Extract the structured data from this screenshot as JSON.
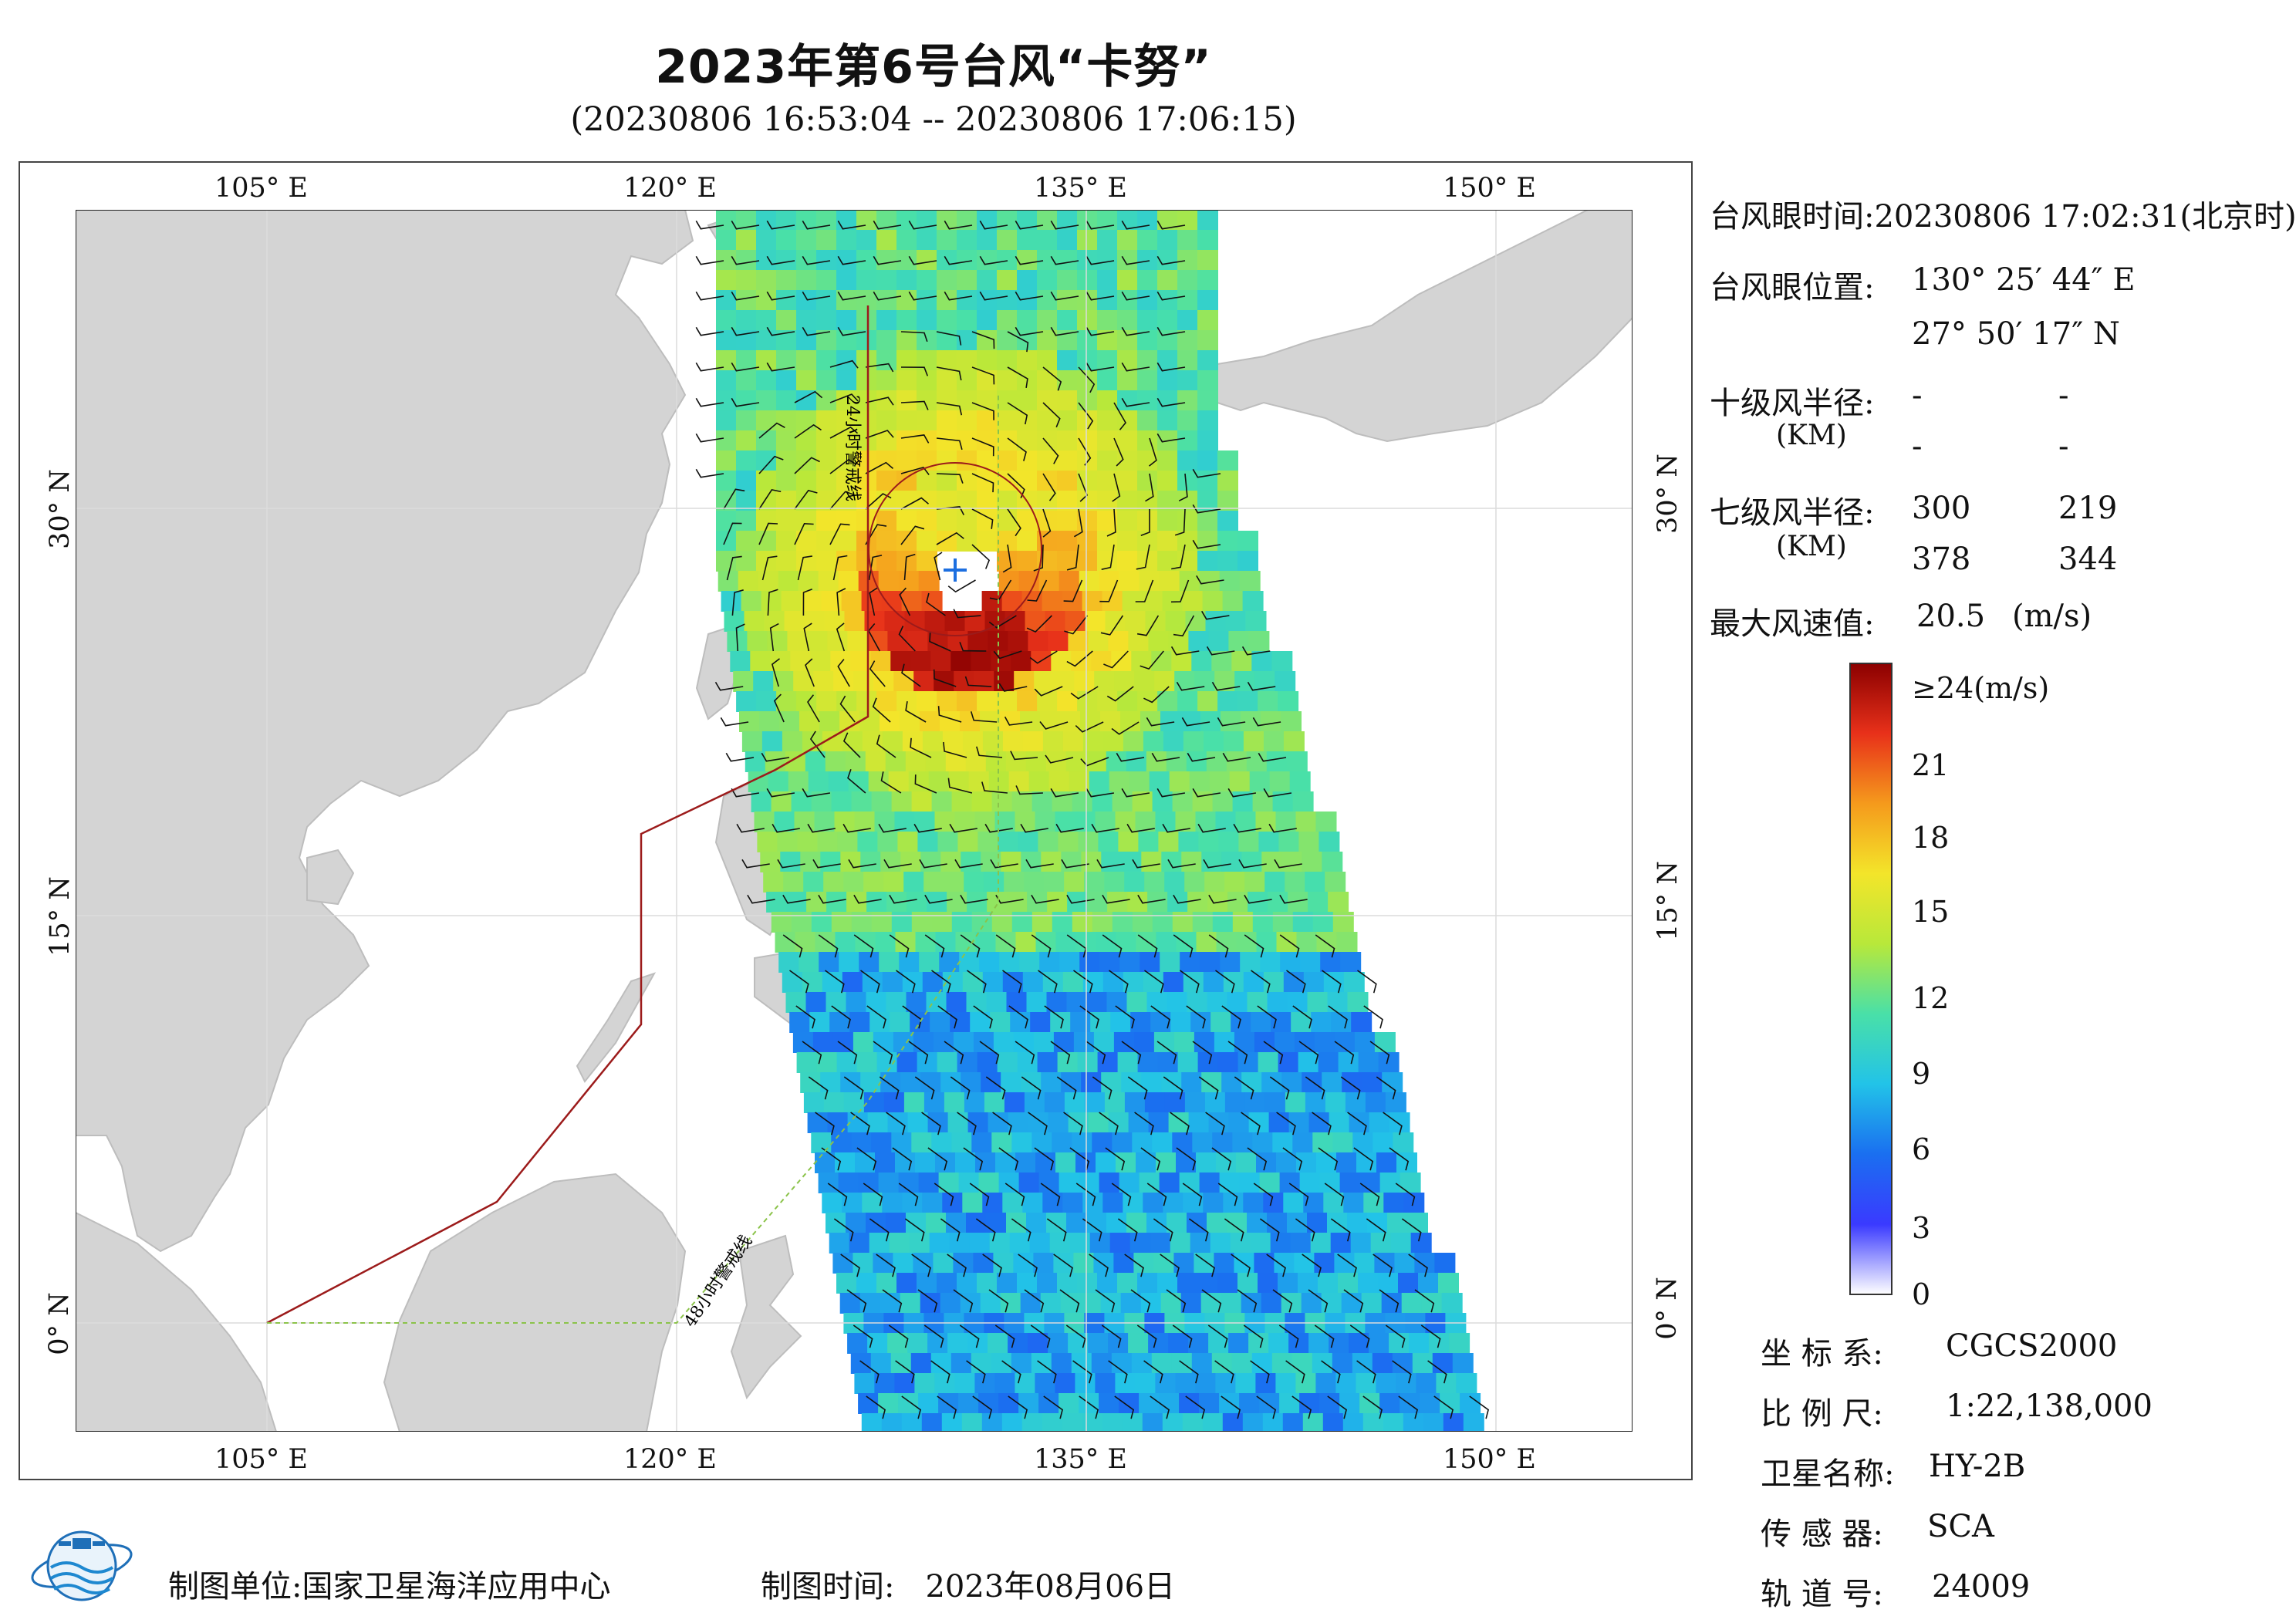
{
  "title": "2023年第6号台风“卡努”",
  "subtitle": "(20230806 16:53:04 -- 20230806 17:06:15)",
  "map": {
    "lon_ticks": [
      "105° E",
      "120° E",
      "135° E",
      "150° E"
    ],
    "lat_ticks": [
      "30° N",
      "15° N",
      "0° N"
    ],
    "lon_range": [
      98,
      155
    ],
    "lat_range": [
      -4,
      41
    ],
    "warning_24h_label": "24小时警戒线",
    "warning_48h_label": "48小时警戒线",
    "typhoon_center": {
      "lon": 130.43,
      "lat": 27.84
    },
    "colors": {
      "land": "#d4d4d4",
      "ocean": "#ffffff",
      "line_24h": "#9c1b1b",
      "line_48h": "#8bc34a",
      "barb": "#111111"
    }
  },
  "info": {
    "eye_time_label": "台风眼时间:",
    "eye_time_value": "20230806 17:02:31(北京时)",
    "eye_pos_label": "台风眼位置:",
    "eye_lon": "130° 25′ 44″ E",
    "eye_lat": "27° 50′ 17″ N",
    "r10_label": "十级风半径:",
    "r10_unit": "(KM)",
    "r10_values": [
      "-",
      "-",
      "-",
      "-"
    ],
    "r7_label": "七级风半径:",
    "r7_unit": "(KM)",
    "r7_values": [
      "300",
      "219",
      "378",
      "344"
    ],
    "max_wind_label": "最大风速值:",
    "max_wind_value": "20.5",
    "max_wind_unit": "(m/s)"
  },
  "colorbar": {
    "labels": [
      "≥24(m/s)",
      "21",
      "18",
      "15",
      "12",
      "9",
      "6",
      "3",
      "0"
    ],
    "min": 0,
    "max": 24,
    "stops": [
      "#ffffff",
      "#3a3aff",
      "#1a6ff0",
      "#22c3e8",
      "#49e0a8",
      "#b8e83a",
      "#f3e52a",
      "#f59a1c",
      "#e8311a",
      "#8b0000"
    ]
  },
  "meta": {
    "crs_label": "坐 标 系:",
    "crs_value": "CGCS2000",
    "scale_label": "比 例 尺:",
    "scale_value": "1:22,138,000",
    "sat_label": "卫星名称:",
    "sat_value": "HY-2B",
    "sensor_label": "传 感 器:",
    "sensor_value": "SCA",
    "orbit_label": "轨 道 号:",
    "orbit_value": "24009"
  },
  "footer": {
    "producer_label": "制图单位:国家卫星海洋应用中心",
    "time_label": "制图时间:",
    "time_value": "2023年08月06日"
  }
}
